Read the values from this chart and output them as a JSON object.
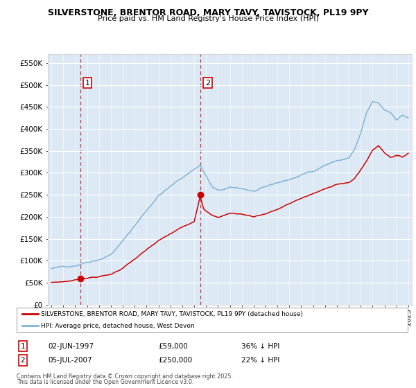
{
  "title": "SILVERSTONE, BRENTOR ROAD, MARY TAVY, TAVISTOCK, PL19 9PY",
  "subtitle": "Price paid vs. HM Land Registry's House Price Index (HPI)",
  "hpi_color": "#7fb3d3",
  "price_color": "#cc0000",
  "dashed_color": "#cc0000",
  "plot_bg": "#dce9f5",
  "ylim": [
    0,
    570000
  ],
  "yticks": [
    0,
    50000,
    100000,
    150000,
    200000,
    250000,
    300000,
    350000,
    400000,
    450000,
    500000,
    550000
  ],
  "ytick_labels": [
    "£0",
    "£50K",
    "£100K",
    "£150K",
    "£200K",
    "£250K",
    "£300K",
    "£350K",
    "£400K",
    "£450K",
    "£500K",
    "£550K"
  ],
  "sale1_date": "02-JUN-1997",
  "sale1_price": 59000,
  "sale1_label": "1",
  "sale1_x": 1997.42,
  "sale2_date": "05-JUL-2007",
  "sale2_price": 250000,
  "sale2_label": "2",
  "sale2_x": 2007.51,
  "legend_line1": "SILVERSTONE, BRENTOR ROAD, MARY TAVY, TAVISTOCK, PL19 9PY (detached house)",
  "legend_line2": "HPI: Average price, detached house, West Devon",
  "footer1": "Contains HM Land Registry data © Crown copyright and database right 2025.",
  "footer2": "This data is licensed under the Open Government Licence v3.0.",
  "table_row1": [
    "1",
    "02-JUN-1997",
    "£59,000",
    "36% ↓ HPI"
  ],
  "table_row2": [
    "2",
    "05-JUL-2007",
    "£250,000",
    "22% ↓ HPI"
  ],
  "hpi_anchors_x": [
    1995.0,
    1995.5,
    1996.0,
    1996.5,
    1997.0,
    1997.5,
    1998.0,
    1999.0,
    2000.0,
    2001.0,
    2002.0,
    2003.0,
    2004.0,
    2005.0,
    2006.0,
    2007.0,
    2007.5,
    2008.0,
    2008.5,
    2009.0,
    2010.0,
    2011.0,
    2012.0,
    2013.0,
    2014.0,
    2015.0,
    2016.0,
    2017.0,
    2018.0,
    2019.0,
    2020.0,
    2020.5,
    2021.0,
    2021.5,
    2022.0,
    2022.5,
    2023.0,
    2023.5,
    2024.0,
    2024.5,
    2025.0
  ],
  "hpi_anchors_y": [
    82000,
    83000,
    85000,
    87000,
    90000,
    95000,
    100000,
    108000,
    120000,
    150000,
    185000,
    220000,
    255000,
    275000,
    295000,
    315000,
    325000,
    300000,
    275000,
    265000,
    270000,
    268000,
    262000,
    268000,
    278000,
    285000,
    295000,
    305000,
    320000,
    330000,
    335000,
    355000,
    390000,
    435000,
    460000,
    455000,
    440000,
    435000,
    420000,
    430000,
    425000
  ],
  "price_anchors_x": [
    1995.0,
    1996.0,
    1997.0,
    1997.42,
    1998.0,
    1999.0,
    2000.0,
    2001.0,
    2002.0,
    2003.0,
    2004.0,
    2005.0,
    2006.0,
    2007.0,
    2007.51,
    2007.8,
    2008.5,
    2009.0,
    2009.5,
    2010.0,
    2011.0,
    2012.0,
    2013.0,
    2014.0,
    2015.0,
    2016.0,
    2017.0,
    2018.0,
    2019.0,
    2020.0,
    2020.5,
    2021.0,
    2021.5,
    2022.0,
    2022.5,
    2023.0,
    2023.5,
    2024.0,
    2024.5,
    2025.0
  ],
  "price_anchors_y": [
    50000,
    52000,
    56000,
    59000,
    62000,
    65000,
    70000,
    85000,
    105000,
    125000,
    145000,
    160000,
    175000,
    190000,
    250000,
    220000,
    205000,
    200000,
    205000,
    210000,
    208000,
    203000,
    210000,
    220000,
    232000,
    245000,
    255000,
    265000,
    278000,
    280000,
    290000,
    310000,
    330000,
    355000,
    365000,
    350000,
    340000,
    345000,
    340000,
    350000
  ]
}
